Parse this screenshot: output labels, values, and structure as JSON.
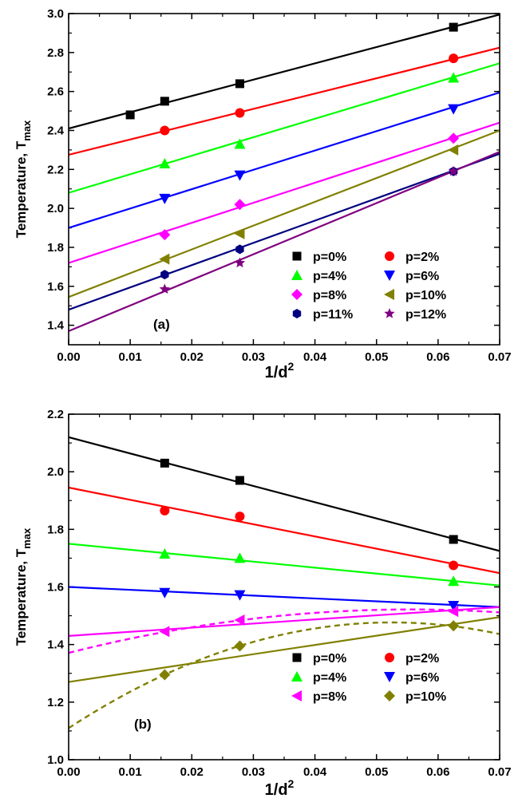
{
  "chart_data": [
    {
      "type": "scatter",
      "panel_label": "(a)",
      "xlabel": "1/d",
      "xlabel_sup": "2",
      "ylabel": "Temperature, T",
      "ylabel_sub": "max",
      "xlim": [
        0.0,
        0.07
      ],
      "ylim": [
        1.3,
        3.0
      ],
      "x_ticks": [
        "0.00",
        "0.01",
        "0.02",
        "0.03",
        "0.04",
        "0.05",
        "0.06",
        "0.07"
      ],
      "y_ticks": [
        "1.4",
        "1.6",
        "1.8",
        "2.0",
        "2.2",
        "2.4",
        "2.6",
        "2.8",
        "3.0"
      ],
      "grid": false,
      "legend_position": "bottom-right",
      "series": [
        {
          "name": "p=0%",
          "color": "#000000",
          "marker": "square",
          "x": [
            0.01,
            0.0156,
            0.0278,
            0.0625
          ],
          "y": [
            2.48,
            2.55,
            2.64,
            2.93
          ],
          "fit": {
            "kind": "linear",
            "intercept": 2.41,
            "end": 2.995
          }
        },
        {
          "name": "p=2%",
          "color": "#ff0000",
          "marker": "circle",
          "x": [
            0.0156,
            0.0278,
            0.0625
          ],
          "y": [
            2.4,
            2.49,
            2.77
          ],
          "fit": {
            "kind": "linear",
            "intercept": 2.275,
            "end": 2.825
          }
        },
        {
          "name": "p=4%",
          "color": "#00ff00",
          "marker": "triangle-up",
          "x": [
            0.0156,
            0.0278,
            0.0625
          ],
          "y": [
            2.23,
            2.33,
            2.67
          ],
          "fit": {
            "kind": "linear",
            "intercept": 2.08,
            "end": 2.745
          }
        },
        {
          "name": "p=6%",
          "color": "#0000ff",
          "marker": "triangle-down",
          "x": [
            0.0156,
            0.0278,
            0.0625
          ],
          "y": [
            2.05,
            2.17,
            2.51
          ],
          "fit": {
            "kind": "linear",
            "intercept": 1.9,
            "end": 2.595
          }
        },
        {
          "name": "p=8%",
          "color": "#ff00ff",
          "marker": "diamond",
          "x": [
            0.0156,
            0.0278,
            0.0625
          ],
          "y": [
            1.865,
            2.02,
            2.36
          ],
          "fit": {
            "kind": "linear",
            "intercept": 1.72,
            "end": 2.44
          }
        },
        {
          "name": "p=10%",
          "color": "#808000",
          "marker": "triangle-left",
          "x": [
            0.0156,
            0.0278,
            0.0625
          ],
          "y": [
            1.74,
            1.87,
            2.3
          ],
          "fit": {
            "kind": "linear",
            "intercept": 1.545,
            "end": 2.4
          }
        },
        {
          "name": "p=11%",
          "color": "#000080",
          "marker": "hexagon",
          "x": [
            0.0156,
            0.0278,
            0.0625
          ],
          "y": [
            1.66,
            1.79,
            2.19
          ],
          "fit": {
            "kind": "linear",
            "intercept": 1.48,
            "end": 2.28
          }
        },
        {
          "name": "p=12%",
          "color": "#800080",
          "marker": "star",
          "x": [
            0.0156,
            0.0278,
            0.0625
          ],
          "y": [
            1.585,
            1.72,
            2.19
          ],
          "fit": {
            "kind": "linear",
            "intercept": 1.37,
            "end": 2.29
          }
        }
      ]
    },
    {
      "type": "scatter",
      "panel_label": "(b)",
      "xlabel": "1/d",
      "xlabel_sup": "2",
      "ylabel": "Temperature, T",
      "ylabel_sub": "max",
      "xlim": [
        0.0,
        0.07
      ],
      "ylim": [
        1.0,
        2.2
      ],
      "x_ticks": [
        "0.00",
        "0.01",
        "0.02",
        "0.03",
        "0.04",
        "0.05",
        "0.06",
        "0.07"
      ],
      "y_ticks": [
        "1.0",
        "1.2",
        "1.4",
        "1.6",
        "1.8",
        "2.0",
        "2.2"
      ],
      "grid": false,
      "legend_position": "bottom-right",
      "series": [
        {
          "name": "p=0%",
          "color": "#000000",
          "marker": "square",
          "x": [
            0.0156,
            0.0278,
            0.0625
          ],
          "y": [
            2.03,
            1.97,
            1.765
          ],
          "fit": {
            "kind": "linear",
            "intercept": 2.12,
            "end": 1.725
          }
        },
        {
          "name": "p=2%",
          "color": "#ff0000",
          "marker": "circle",
          "x": [
            0.0156,
            0.0278,
            0.0625
          ],
          "y": [
            1.865,
            1.845,
            1.675
          ],
          "fit": {
            "kind": "linear",
            "intercept": 1.945,
            "end": 1.648
          }
        },
        {
          "name": "p=4%",
          "color": "#00ff00",
          "marker": "triangle-up",
          "x": [
            0.0156,
            0.0278,
            0.0625
          ],
          "y": [
            1.715,
            1.7,
            1.62
          ],
          "fit": {
            "kind": "linear",
            "intercept": 1.75,
            "end": 1.605
          }
        },
        {
          "name": "p=6%",
          "color": "#0000ff",
          "marker": "triangle-down",
          "x": [
            0.0156,
            0.0278,
            0.0625
          ],
          "y": [
            1.58,
            1.572,
            1.535
          ],
          "fit": {
            "kind": "linear",
            "intercept": 1.6,
            "end": 1.53
          }
        },
        {
          "name": "p=8%",
          "color": "#ff00ff",
          "marker": "triangle-left",
          "x": [
            0.0156,
            0.0278,
            0.0625
          ],
          "y": [
            1.445,
            1.485,
            1.515
          ],
          "fit": {
            "kind": "linear",
            "intercept": 1.43,
            "end": 1.53
          },
          "dashed_fit": {
            "kind": "quadratic",
            "x": [
              0.0,
              0.0156,
              0.0278,
              0.0625,
              0.07
            ],
            "y": [
              1.37,
              1.445,
              1.485,
              1.515,
              1.515
            ]
          }
        },
        {
          "name": "p=10%",
          "color": "#808000",
          "marker": "diamond",
          "x": [
            0.0156,
            0.0278,
            0.0625
          ],
          "y": [
            1.295,
            1.395,
            1.465
          ],
          "fit": {
            "kind": "linear",
            "intercept": 1.27,
            "end": 1.495
          },
          "dashed_fit": {
            "kind": "quadratic",
            "x": [
              0.0,
              0.0156,
              0.0278,
              0.0625,
              0.07
            ],
            "y": [
              1.11,
              1.295,
              1.395,
              1.465,
              1.435
            ]
          }
        }
      ]
    }
  ]
}
